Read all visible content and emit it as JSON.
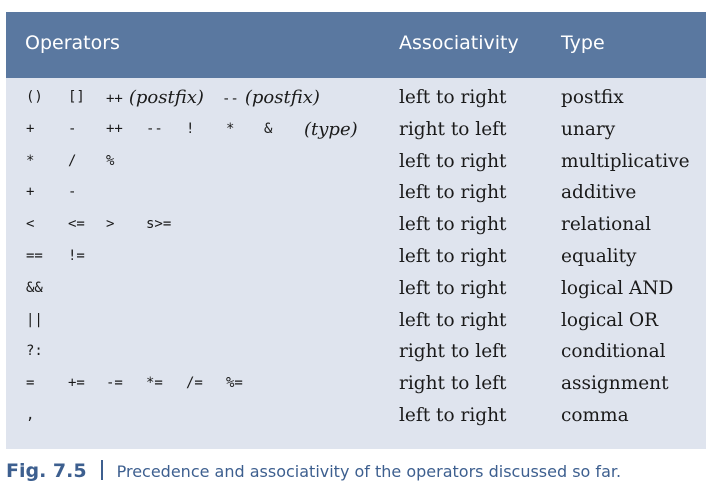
{
  "header": {
    "operators": "Operators",
    "associativity": "Associativity",
    "type": "Type"
  },
  "rows": [
    {
      "tokens": [
        {
          "t": "()"
        },
        {
          "t": "[]"
        },
        {
          "t": "++",
          "tag": "(postfix)"
        },
        {
          "t": "--",
          "tag": "(postfix)"
        }
      ],
      "assoc": "left to right",
      "type": "postfix"
    },
    {
      "tokens": [
        {
          "t": "+"
        },
        {
          "t": "-"
        },
        {
          "t": "++"
        },
        {
          "t": "--"
        },
        {
          "t": "!"
        },
        {
          "t": "*"
        },
        {
          "t": "&"
        },
        {
          "t": "(type)",
          "italic": true
        }
      ],
      "assoc": "right to left",
      "type": "unary"
    },
    {
      "tokens": [
        {
          "t": "*"
        },
        {
          "t": "/"
        },
        {
          "t": "%"
        }
      ],
      "assoc": "left to right",
      "type": "multiplicative"
    },
    {
      "tokens": [
        {
          "t": "+"
        },
        {
          "t": "-"
        }
      ],
      "assoc": "left to right",
      "type": "additive"
    },
    {
      "tokens": [
        {
          "t": "<"
        },
        {
          "t": "<="
        },
        {
          "t": ">"
        },
        {
          "t": "s>="
        }
      ],
      "assoc": "left to right",
      "type": "relational"
    },
    {
      "tokens": [
        {
          "t": "=="
        },
        {
          "t": "!="
        }
      ],
      "assoc": "left to right",
      "type": "equality"
    },
    {
      "tokens": [
        {
          "t": "&&"
        }
      ],
      "assoc": "left to right",
      "type": "logical AND"
    },
    {
      "tokens": [
        {
          "t": "||"
        }
      ],
      "assoc": "left to right",
      "type": "logical OR"
    },
    {
      "tokens": [
        {
          "t": "?:"
        }
      ],
      "assoc": "right to left",
      "type": "conditional"
    },
    {
      "tokens": [
        {
          "t": "="
        },
        {
          "t": "+="
        },
        {
          "t": "-="
        },
        {
          "t": "*="
        },
        {
          "t": "/="
        },
        {
          "t": "%="
        }
      ],
      "assoc": "right to left",
      "type": "assignment"
    },
    {
      "tokens": [
        {
          "t": ","
        }
      ],
      "assoc": "left to right",
      "type": "comma"
    }
  ],
  "caption": {
    "label": "Fig. 7.5",
    "text": "Precedence and associativity of the operators discussed so far."
  },
  "colors": {
    "header_bg": "#5a78a0",
    "table_bg": "#dfe4ee",
    "caption_color": "#3d5f8f"
  }
}
